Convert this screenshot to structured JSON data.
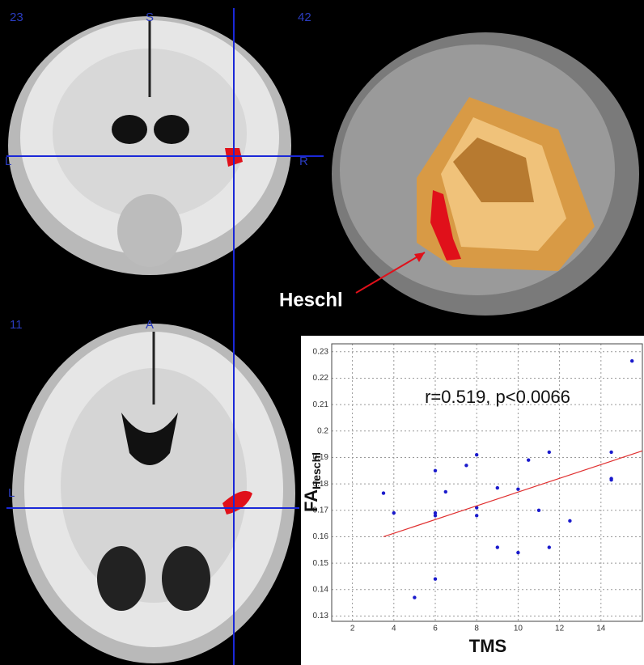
{
  "slices": {
    "coronal": {
      "labels": [
        "23",
        "S",
        "42",
        "L",
        "R"
      ]
    },
    "axial": {
      "labels": [
        "11",
        "A",
        "L"
      ]
    }
  },
  "annotation": "Heschl",
  "chart_data": {
    "type": "scatter",
    "annotation": "r=0.519, p<0.0066",
    "xlabel": "TMS",
    "ylabel": "FA",
    "ylabel_sub": "Heschl",
    "x": [
      3.5,
      4,
      5,
      6,
      6,
      6,
      6,
      6.5,
      7.5,
      8,
      8,
      8,
      9,
      9,
      10,
      10,
      10.5,
      11,
      11.5,
      11.5,
      12.5,
      14.5,
      14.5,
      14.5,
      15.5
    ],
    "values": [
      0.1765,
      0.169,
      0.137,
      0.185,
      0.169,
      0.168,
      0.144,
      0.177,
      0.187,
      0.191,
      0.171,
      0.168,
      0.1785,
      0.156,
      0.178,
      0.154,
      0.189,
      0.17,
      0.192,
      0.156,
      0.166,
      0.192,
      0.182,
      0.1815,
      0.2265
    ],
    "color": "#1a1acc",
    "fit_line": {
      "x": [
        3.5,
        16
      ],
      "y": [
        0.16,
        0.1925
      ],
      "color": "#e03030"
    },
    "xlim": [
      1,
      16
    ],
    "ylim": [
      0.128,
      0.233
    ],
    "xticks": [
      2,
      4,
      6,
      8,
      10,
      12,
      14
    ],
    "yticks": [
      0.13,
      0.14,
      0.15,
      0.16,
      0.17,
      0.18,
      0.19,
      0.2,
      0.21,
      0.22,
      0.23
    ],
    "grid": true
  }
}
